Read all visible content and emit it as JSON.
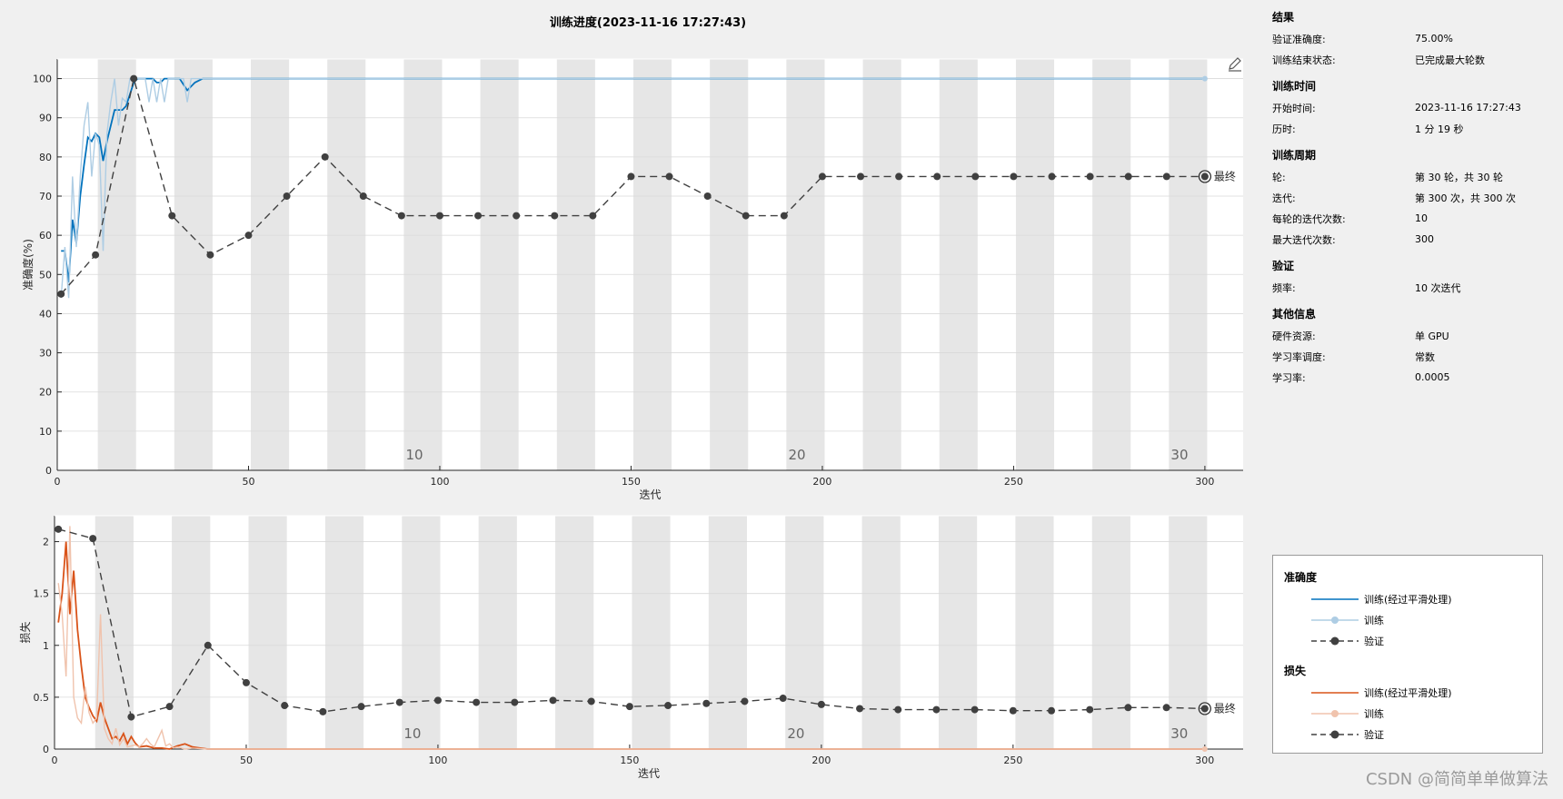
{
  "title": "训练进度(2023-11-16 17:27:43)",
  "chart_data": [
    {
      "type": "line",
      "ylabel": "准确度(%)",
      "xlabel": "迭代",
      "xlim": [
        0,
        310
      ],
      "ylim": [
        0,
        105
      ],
      "xticks": [
        0,
        50,
        100,
        150,
        200,
        250,
        300
      ],
      "yticks": [
        0,
        10,
        20,
        30,
        40,
        50,
        60,
        70,
        80,
        90,
        100
      ],
      "epoch_labels": [
        {
          "x": 93,
          "label": "10"
        },
        {
          "x": 193,
          "label": "20"
        },
        {
          "x": 293,
          "label": "30"
        }
      ],
      "final_label": "最终",
      "series": [
        {
          "name": "训练(经过平滑处理)",
          "color": "#0072bd",
          "x": [
            1,
            2,
            3,
            4,
            5,
            6,
            7,
            8,
            9,
            10,
            11,
            12,
            13,
            14,
            15,
            16,
            17,
            18,
            19,
            20,
            21,
            22,
            23,
            24,
            25,
            26,
            27,
            28,
            29,
            30,
            32,
            34,
            36,
            38,
            40,
            60,
            100,
            150,
            200,
            250,
            300
          ],
          "y": [
            56,
            56,
            48,
            64,
            58,
            70,
            78,
            85,
            84,
            86,
            85,
            79,
            84,
            88,
            92,
            92,
            92,
            93,
            96,
            99,
            100,
            100,
            100,
            100,
            100,
            99,
            99,
            100,
            100,
            100,
            100,
            97,
            99,
            100,
            100,
            100,
            100,
            100,
            100,
            100,
            100
          ]
        },
        {
          "name": "训练",
          "color": "#aecde4",
          "x": [
            1,
            2,
            3,
            4,
            5,
            6,
            7,
            8,
            9,
            10,
            11,
            12,
            13,
            14,
            15,
            16,
            17,
            18,
            19,
            20,
            21,
            22,
            23,
            24,
            25,
            26,
            27,
            28,
            29,
            30,
            31,
            32,
            33,
            34,
            35,
            36,
            38,
            40,
            300
          ],
          "y": [
            44,
            57,
            44,
            75,
            57,
            75,
            88,
            94,
            75,
            86,
            83,
            56,
            86,
            94,
            100,
            88,
            95,
            94,
            100,
            100,
            100,
            100,
            100,
            94,
            100,
            94,
            100,
            94,
            100,
            100,
            100,
            100,
            100,
            94,
            100,
            100,
            100,
            100,
            100
          ]
        },
        {
          "name": "验证",
          "color": "#404040",
          "x": [
            1,
            10,
            20,
            30,
            40,
            50,
            60,
            70,
            80,
            90,
            100,
            110,
            120,
            130,
            140,
            150,
            160,
            170,
            180,
            190,
            200,
            210,
            220,
            230,
            240,
            250,
            260,
            270,
            280,
            290,
            300
          ],
          "y": [
            45,
            55,
            100,
            65,
            55,
            60,
            70,
            80,
            70,
            65,
            65,
            65,
            65,
            65,
            65,
            75,
            75,
            70,
            65,
            65,
            75,
            75,
            75,
            75,
            75,
            75,
            75,
            75,
            75,
            75,
            75
          ]
        }
      ]
    },
    {
      "type": "line",
      "ylabel": "损失",
      "xlabel": "迭代",
      "xlim": [
        0,
        310
      ],
      "ylim": [
        0,
        2.25
      ],
      "xticks": [
        0,
        50,
        100,
        150,
        200,
        250,
        300
      ],
      "yticks": [
        0,
        0.5,
        1,
        1.5,
        2
      ],
      "epoch_labels": [
        {
          "x": 93,
          "label": "10"
        },
        {
          "x": 193,
          "label": "20"
        },
        {
          "x": 293,
          "label": "30"
        }
      ],
      "final_label": "最终",
      "series": [
        {
          "name": "训练(经过平滑处理)",
          "color": "#d95319",
          "x": [
            1,
            2,
            3,
            4,
            5,
            6,
            7,
            8,
            9,
            10,
            11,
            12,
            13,
            14,
            15,
            16,
            17,
            18,
            19,
            20,
            21,
            22,
            24,
            26,
            28,
            30,
            32,
            34,
            36,
            38,
            40,
            300
          ],
          "y": [
            1.22,
            1.5,
            2.0,
            1.3,
            1.72,
            1.15,
            0.8,
            0.5,
            0.4,
            0.32,
            0.27,
            0.45,
            0.3,
            0.2,
            0.1,
            0.12,
            0.08,
            0.15,
            0.05,
            0.12,
            0.06,
            0.02,
            0.03,
            0.01,
            0.01,
            0.0,
            0.03,
            0.05,
            0.02,
            0.01,
            0.0,
            0.0
          ]
        },
        {
          "name": "训练",
          "color": "#f0c3ad",
          "x": [
            1,
            2,
            3,
            4,
            5,
            6,
            7,
            8,
            9,
            10,
            11,
            12,
            13,
            14,
            15,
            16,
            17,
            18,
            19,
            20,
            21,
            22,
            23,
            24,
            25,
            26,
            27,
            28,
            29,
            30,
            31,
            32,
            34,
            36,
            40,
            300
          ],
          "y": [
            1.6,
            1.3,
            0.7,
            2.15,
            0.5,
            0.3,
            0.25,
            0.6,
            0.35,
            0.25,
            0.3,
            1.3,
            0.2,
            0.1,
            0.05,
            0.2,
            0.04,
            0.1,
            0.02,
            0.03,
            0.04,
            0.02,
            0.05,
            0.1,
            0.05,
            0.02,
            0.1,
            0.18,
            0.03,
            0.05,
            0.01,
            0.02,
            0.0,
            0.01,
            0.0,
            0.0
          ]
        },
        {
          "name": "验证",
          "color": "#404040",
          "x": [
            1,
            10,
            20,
            30,
            40,
            50,
            60,
            70,
            80,
            90,
            100,
            110,
            120,
            130,
            140,
            150,
            160,
            170,
            180,
            190,
            200,
            210,
            220,
            230,
            240,
            250,
            260,
            270,
            280,
            290,
            300
          ],
          "y": [
            2.12,
            2.03,
            0.31,
            0.41,
            1.0,
            0.64,
            0.42,
            0.36,
            0.41,
            0.45,
            0.47,
            0.45,
            0.45,
            0.47,
            0.46,
            0.41,
            0.42,
            0.44,
            0.46,
            0.49,
            0.43,
            0.39,
            0.38,
            0.38,
            0.38,
            0.37,
            0.37,
            0.38,
            0.4,
            0.4,
            0.39
          ]
        }
      ]
    }
  ],
  "info": {
    "sections": [
      {
        "title": "结果",
        "rows": [
          {
            "k": "验证准确度:",
            "v": "75.00%"
          },
          {
            "k": "训练结束状态:",
            "v": "已完成最大轮数"
          }
        ]
      },
      {
        "title": "训练时间",
        "rows": [
          {
            "k": "开始时间:",
            "v": "2023-11-16 17:27:43"
          },
          {
            "k": "历时:",
            "v": "1 分 19 秒"
          }
        ]
      },
      {
        "title": "训练周期",
        "rows": [
          {
            "k": "轮:",
            "v": "第 30 轮，共 30 轮"
          },
          {
            "k": "迭代:",
            "v": "第 300 次，共 300 次"
          },
          {
            "k": "每轮的迭代次数:",
            "v": "10"
          },
          {
            "k": "最大迭代次数:",
            "v": "300"
          }
        ]
      },
      {
        "title": "验证",
        "rows": [
          {
            "k": "频率:",
            "v": "10 次迭代"
          }
        ]
      },
      {
        "title": "其他信息",
        "rows": [
          {
            "k": "硬件资源:",
            "v": "单 GPU"
          },
          {
            "k": "学习率调度:",
            "v": "常数"
          },
          {
            "k": "学习率:",
            "v": "0.0005"
          }
        ]
      }
    ]
  },
  "legend": {
    "acc_title": "准确度",
    "acc_smooth": "训练(经过平滑处理)",
    "acc_train": "训练",
    "acc_val": "验证",
    "loss_title": "损失",
    "loss_smooth": "训练(经过平滑处理)",
    "loss_train": "训练",
    "loss_val": "验证"
  },
  "watermark": "CSDN @简简单单做算法",
  "icons": {
    "edit": "edit-plot-icon"
  }
}
